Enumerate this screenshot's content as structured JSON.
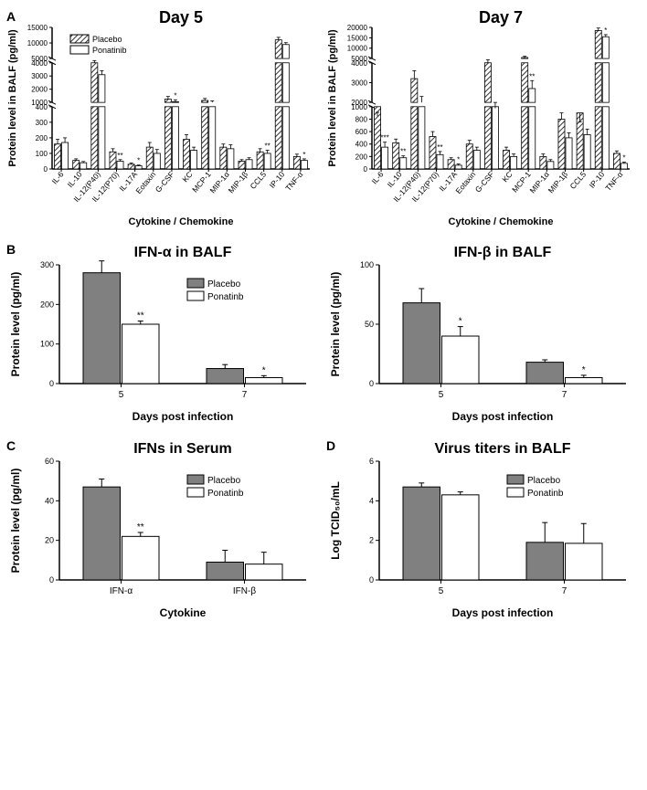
{
  "colors": {
    "placebo_fill": "#808080",
    "placebo_hatch": "#333333",
    "ponatinib_fill": "#ffffff",
    "stroke": "#000000",
    "background": "#ffffff"
  },
  "legend": {
    "placebo": "Placebo",
    "ponatinib": "Ponatinib",
    "ponatinib_alt": "Ponatinb"
  },
  "panelA": {
    "label": "A",
    "ylabel": "Protein level in BALF (pg/ml)",
    "xlabel": "Cytokine / Chemokine",
    "categories": [
      "IL-6",
      "IL-10",
      "IL-12(P40)",
      "IL-12(P70)",
      "IL-17A",
      "Eotaxin",
      "G-CSF",
      "KC",
      "MCP-1",
      "MIP-1α",
      "MIP-1β",
      "CCL5",
      "IP-10",
      "TNF-α"
    ],
    "day5": {
      "title": "Day 5",
      "break_low": 400,
      "break_high": 5000,
      "ymax": 15000,
      "ticks_low": [
        0,
        100,
        200,
        300,
        400
      ],
      "ticks_mid": [
        1000,
        2000,
        3000,
        4000
      ],
      "ticks_high": [
        5000,
        10000,
        15000
      ],
      "placebo": [
        160,
        55,
        4000,
        110,
        30,
        140,
        1250,
        190,
        1150,
        140,
        50,
        110,
        11000,
        80
      ],
      "ponatinib": [
        170,
        40,
        3100,
        50,
        20,
        100,
        1050,
        120,
        1000,
        130,
        60,
        100,
        9500,
        55
      ],
      "errors_p": [
        30,
        10,
        350,
        20,
        8,
        30,
        200,
        30,
        150,
        20,
        10,
        20,
        800,
        15
      ],
      "errors_n": [
        30,
        8,
        300,
        10,
        5,
        25,
        150,
        20,
        120,
        25,
        12,
        20,
        600,
        10
      ],
      "sig": [
        "",
        "",
        "",
        "**",
        "*",
        "",
        "*",
        "",
        "",
        "",
        "",
        "**",
        "",
        "*"
      ]
    },
    "day7": {
      "title": "Day 7",
      "break_low": 1000,
      "break_high": 5000,
      "ymax": 20000,
      "ticks_low": [
        0,
        200,
        400,
        600,
        800,
        1000
      ],
      "ticks_mid": [
        2000,
        3000,
        4000
      ],
      "ticks_high": [
        5000,
        10000,
        15000,
        20000
      ],
      "placebo": [
        1300,
        420,
        3200,
        520,
        150,
        400,
        4000,
        300,
        5500,
        200,
        800,
        900,
        18500,
        250
      ],
      "ponatinib": [
        350,
        180,
        2000,
        230,
        60,
        300,
        1700,
        200,
        2700,
        120,
        500,
        550,
        15500,
        90
      ],
      "errors_p": [
        200,
        60,
        400,
        80,
        30,
        60,
        400,
        50,
        600,
        40,
        100,
        120,
        1200,
        40
      ],
      "errors_n": [
        80,
        30,
        300,
        50,
        20,
        50,
        300,
        40,
        400,
        30,
        80,
        90,
        1000,
        20
      ],
      "sig": [
        "***",
        "**",
        "",
        "**",
        "*",
        "",
        "",
        "",
        "**",
        "",
        "",
        "",
        "*",
        "*"
      ]
    }
  },
  "panelB": {
    "label": "B",
    "xlabel": "Days post infection",
    "ylabel": "Protein level (pg/ml)",
    "categories": [
      "5",
      "7"
    ],
    "ifna": {
      "title": "IFN-α in BALF",
      "ymax": 300,
      "yticks": [
        0,
        100,
        200,
        300
      ],
      "placebo": [
        280,
        38
      ],
      "ponatinib": [
        150,
        15
      ],
      "errors_p": [
        30,
        10
      ],
      "errors_n": [
        8,
        5
      ],
      "sig": [
        "**",
        "*"
      ]
    },
    "ifnb": {
      "title": "IFN-β in BALF",
      "ymax": 100,
      "yticks": [
        0,
        50,
        100
      ],
      "placebo": [
        68,
        18
      ],
      "ponatinib": [
        40,
        5
      ],
      "errors_p": [
        12,
        2
      ],
      "errors_n": [
        8,
        2
      ],
      "sig": [
        "*",
        "*"
      ]
    }
  },
  "panelC": {
    "label": "C",
    "title": "IFNs in Serum",
    "xlabel": "Cytokine",
    "ylabel": "Protein level (pg/ml)",
    "categories": [
      "IFN-α",
      "IFN-β"
    ],
    "ymax": 60,
    "yticks": [
      0,
      20,
      40,
      60
    ],
    "placebo": [
      47,
      9
    ],
    "ponatinib": [
      22,
      8
    ],
    "errors_p": [
      4,
      6
    ],
    "errors_n": [
      2,
      6
    ],
    "sig": [
      "**",
      ""
    ]
  },
  "panelD": {
    "label": "D",
    "title": "Virus titers in BALF",
    "xlabel": "Days post infection",
    "ylabel": "Log TCID₅₀/mL",
    "categories": [
      "5",
      "7"
    ],
    "ymax": 6,
    "yticks": [
      0,
      2,
      4,
      6
    ],
    "placebo": [
      4.7,
      1.9
    ],
    "ponatinib": [
      4.3,
      1.85
    ],
    "errors_p": [
      0.2,
      1.0
    ],
    "errors_n": [
      0.15,
      1.0
    ],
    "sig": [
      "",
      ""
    ]
  }
}
